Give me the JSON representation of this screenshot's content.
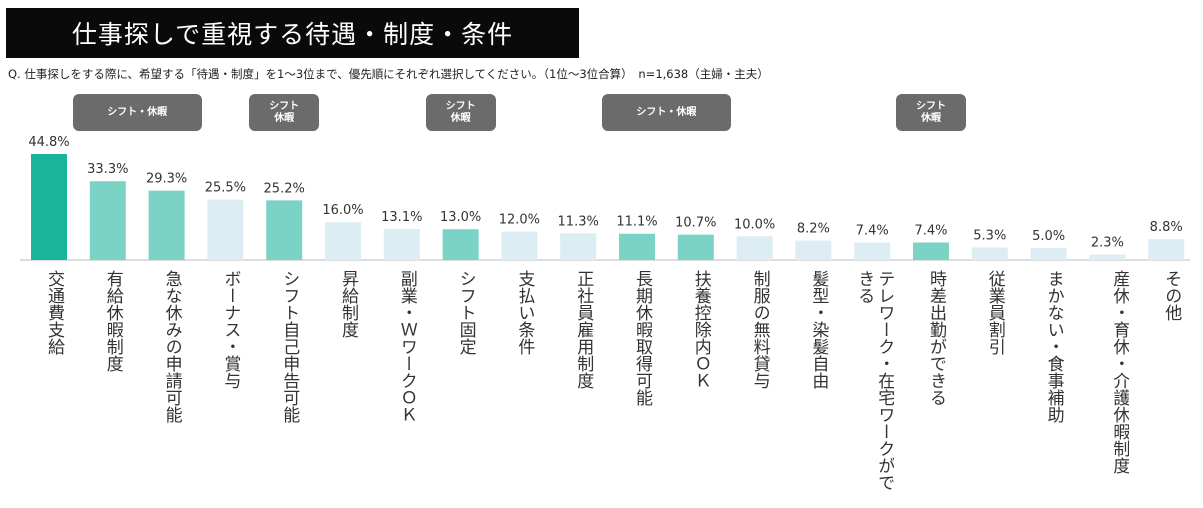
{
  "header": {
    "title": "仕事探しで重視する待遇・制度・条件",
    "question": "Q. 仕事探しをする際に、希望する「待遇・制度」を1～3位まで、優先順にそれぞれ選択してください。（1位～3位合算）　n=1,638（主婦・主夫）"
  },
  "tags": [
    "シフト・休暇",
    "シフト\n休暇",
    "シフト\n休暇",
    "シフト・休暇",
    "シフト\n休暇"
  ],
  "colors": {
    "highlight": "#1ab49a",
    "shift": "#7ad3c5",
    "other": "#dcedf4",
    "tag_bg": "#6b6b6b",
    "title_bg": "#0a0a0a"
  },
  "chart_data": {
    "type": "bar",
    "title": "仕事探しで重視する待遇・制度・条件",
    "categories": [
      "交通費支給",
      "有給休暇制度",
      "急な休みの申請可能",
      "ボーナス・賞与",
      "シフト自己申告可能",
      "昇給制度",
      "副業・ＷワークＯＫ",
      "シフト固定",
      "支払い条件",
      "正社員雇用制度",
      "長期休暇取得可能",
      "扶養控除内ＯＫ",
      "制服の無料貸与",
      "髪型・染髪自由",
      "テレワーク・在宅ワークができる",
      "時差出勤ができる",
      "従業員割引",
      "まかない・食事補助",
      "産休・育休・介護休暇制度",
      "その他"
    ],
    "values": [
      44.8,
      33.3,
      29.3,
      25.5,
      25.2,
      16.0,
      13.1,
      13.0,
      12.0,
      11.3,
      11.1,
      10.7,
      10.0,
      8.2,
      7.4,
      7.4,
      5.3,
      5.0,
      2.3,
      8.8
    ],
    "value_labels": [
      "44.8%",
      "33.3%",
      "29.3%",
      "25.5%",
      "25.2%",
      "16.0%",
      "13.1%",
      "13.0%",
      "12.0%",
      "11.3%",
      "11.1%",
      "10.7%",
      "10.0%",
      "8.2%",
      "7.4%",
      "7.4%",
      "5.3%",
      "5.0%",
      "2.3%",
      "8.8%"
    ],
    "bar_color_keys": [
      "highlight",
      "shift",
      "shift",
      "other",
      "shift",
      "other",
      "other",
      "shift",
      "other",
      "other",
      "shift",
      "shift",
      "other",
      "other",
      "other",
      "shift",
      "other",
      "other",
      "other",
      "other"
    ],
    "tag_groups": [
      [
        1,
        2
      ],
      [
        4
      ],
      [
        7
      ],
      [
        10,
        11
      ],
      [
        15
      ]
    ],
    "ylim": [
      0,
      50
    ],
    "grid": false,
    "legend": "none"
  }
}
